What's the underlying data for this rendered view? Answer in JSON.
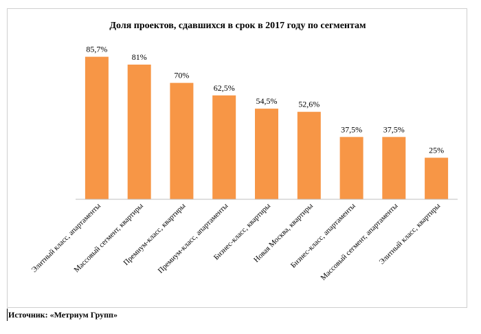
{
  "chart_data": {
    "type": "bar",
    "title": "Доля проектов, сдавшихся в срок в 2017 году по сегментам",
    "xlabel": "",
    "ylabel": "",
    "ylim": [
      0,
      100
    ],
    "grid": false,
    "legend": "none",
    "bar_color": "#F79646",
    "categories": [
      "Элитный класс, апартаменты",
      "Массовый сегмент, квартиры",
      "Премиум-класс, квартиры",
      "Премиум-класс, апартаменты",
      "Бизнес-класс, квартиры",
      "Новая Москва, квартиры",
      "Бизнес-класс, апартаменты",
      "Массовый сегмент, апартаменты",
      "Элитный класс, квартиры"
    ],
    "values": [
      85.7,
      81,
      70,
      62.5,
      54.5,
      52.6,
      37.5,
      37.5,
      25
    ],
    "value_labels": [
      "85,7%",
      "81%",
      "70%",
      "62,5%",
      "54,5%",
      "52,6%",
      "37,5%",
      "37,5%",
      "25%"
    ]
  },
  "source": "Источник: «Метриум Групп»"
}
